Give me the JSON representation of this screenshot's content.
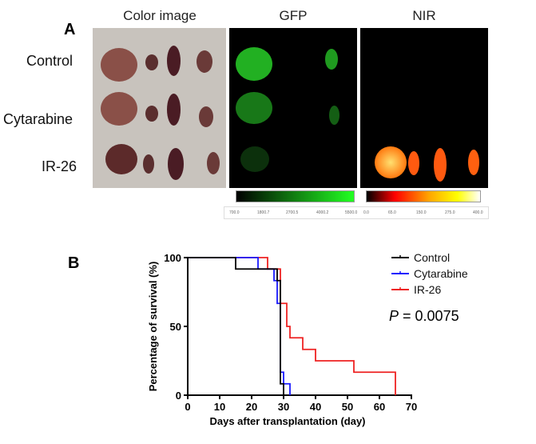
{
  "panel_a": {
    "letter": "A",
    "columns": [
      "Color image",
      "GFP",
      "NIR"
    ],
    "rows": [
      "Control",
      "Cytarabine",
      "IR-26"
    ],
    "gfp_colorbar": {
      "ticks": [
        "700.0",
        "1800.7",
        "2700.5",
        "4000.2",
        "5500.0"
      ],
      "colors": [
        "#000000",
        "#22ff22"
      ]
    },
    "nir_colorbar": {
      "ticks": [
        "0.0",
        "65.0",
        "150.0",
        "275.0",
        "400.0"
      ],
      "colors": [
        "#000000",
        "#ff0000",
        "#ffa500",
        "#ffff00",
        "#ffffff"
      ]
    }
  },
  "panel_b": {
    "letter": "B"
  },
  "chart_data": {
    "type": "line",
    "subtype": "kaplan-meier step",
    "xlabel": "Days after transplantation (day)",
    "ylabel": "Percentage of survival (%)",
    "xlim": [
      0,
      70
    ],
    "ylim": [
      0,
      100
    ],
    "xticks": [
      0,
      10,
      20,
      30,
      40,
      50,
      60,
      70
    ],
    "yticks": [
      0,
      50,
      100
    ],
    "grid": false,
    "legend_position": "top-right",
    "annotation": {
      "italic": "P",
      "text": " = 0.0075"
    },
    "series": [
      {
        "name": "Control",
        "color": "#000000",
        "points": [
          [
            0,
            100
          ],
          [
            15,
            91.7
          ],
          [
            28,
            83.3
          ],
          [
            29,
            8.3
          ],
          [
            30,
            0
          ]
        ]
      },
      {
        "name": "Cytarabine",
        "color": "#1a1aff",
        "points": [
          [
            0,
            100
          ],
          [
            22,
            91.7
          ],
          [
            27,
            83.3
          ],
          [
            28,
            66.7
          ],
          [
            29,
            16.7
          ],
          [
            30,
            8.3
          ],
          [
            32,
            0
          ]
        ]
      },
      {
        "name": "IR-26",
        "color": "#ee2222",
        "points": [
          [
            0,
            100
          ],
          [
            25,
            91.7
          ],
          [
            29,
            66.7
          ],
          [
            31,
            50
          ],
          [
            32,
            41.7
          ],
          [
            36,
            33.3
          ],
          [
            40,
            25
          ],
          [
            52,
            16.7
          ],
          [
            65,
            0
          ]
        ]
      }
    ]
  }
}
